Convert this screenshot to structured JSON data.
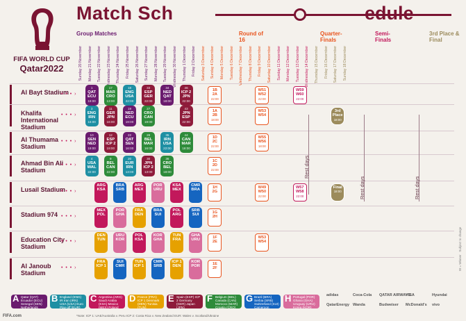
{
  "header": {
    "title": "Match Sch",
    "title_tail": "edule",
    "brand": "FIFA WORLD CUP",
    "brand_sub": "Qatar2022"
  },
  "stages": {
    "group": "Group Matches",
    "r16": "Round of 16",
    "qf": "Quarter-Finals",
    "sf": "Semi-Finals",
    "final": "3rd Place & Final"
  },
  "days": [
    "Sunday 20 November",
    "Monday 21 November",
    "Tuesday 22 November",
    "Wednesday 23 November",
    "Thursday 24 November",
    "Friday 25 November",
    "Saturday 26 November",
    "Sunday 27 November",
    "Monday 28 November",
    "Tuesday 29 November",
    "Wednesday 30 November",
    "Thursday 1 December",
    "Friday 2 December",
    "Saturday 3 December",
    "Sunday 4 December",
    "Monday 5 December",
    "Tuesday 6 December",
    "Wednesday 7 December",
    "Thursday 8 December",
    "Friday 9 December",
    "Saturday 10 December",
    "Sunday 11 December",
    "Monday 12 December",
    "Tuesday 13 December",
    "Wednesday 14 December",
    "Thursday 15 December",
    "Friday 16 December",
    "Saturday 17 December",
    "Sunday 18 December"
  ],
  "stadiums": [
    "Al Bayt Stadium",
    "Khalifa International Stadium",
    "Al Thumama Stadium",
    "Ahmad Bin Ali Stadium",
    "Lusail Stadium",
    "Stadium 974",
    "Education City Stadium",
    "Al Janoub Stadium"
  ],
  "rest_label": "Rest days",
  "matches": [
    {
      "no": "1",
      "a": "QAT",
      "b": "ECU",
      "time": "19:00",
      "color": "#6a1b6e"
    },
    {
      "no": "17",
      "a": "MAR",
      "b": "CRO",
      "time": "13:00",
      "color": "#2e8b3a"
    },
    {
      "no": "18",
      "a": "ENG",
      "b": "USA",
      "time": "22:00",
      "color": "#1e8fa3"
    },
    {
      "no": "33",
      "a": "ESP",
      "b": "GER",
      "time": "22:00",
      "color": "#8e1b3a"
    },
    {
      "no": "34",
      "a": "NED",
      "b": "QAT",
      "time": "18:00",
      "color": "#6a1b6e"
    },
    {
      "no": "46",
      "a": "ICP 2",
      "b": "JPN",
      "time": "22:00",
      "color": "#8e1b3a"
    },
    {
      "no": "3",
      "a": "ENG",
      "b": "IRN",
      "time": "16:00",
      "color": "#1e8fa3"
    },
    {
      "no": "11",
      "a": "GER",
      "b": "JPN",
      "time": "16:00",
      "color": "#8e1b3a"
    },
    {
      "no": "19",
      "a": "NED",
      "b": "ECU",
      "time": "19:00",
      "color": "#6a1b6e"
    },
    {
      "no": "27",
      "a": "CRO",
      "b": "CAN",
      "time": "19:00",
      "color": "#2e8b3a"
    },
    {
      "no": "43",
      "a": "JPN",
      "b": "ESP",
      "time": "22:00",
      "color": "#8e1b3a"
    },
    {
      "no": "10",
      "a": "SEN",
      "b": "NED",
      "time": "19:00",
      "color": "#6a1b6e"
    },
    {
      "no": "12",
      "a": "ESP",
      "b": "ICP 2",
      "time": "19:00",
      "color": "#8e1b3a"
    },
    {
      "no": "22",
      "a": "QAT",
      "b": "SEN",
      "time": "16:00",
      "color": "#6a1b6e"
    },
    {
      "no": "28",
      "a": "BEL",
      "b": "MAR",
      "time": "16:00",
      "color": "#2e8b3a"
    },
    {
      "no": "35",
      "a": "IRN",
      "b": "USA",
      "time": "22:00",
      "color": "#1e8fa3"
    },
    {
      "no": "44",
      "a": "CAN",
      "b": "MAR",
      "time": "18:00",
      "color": "#2e8b3a"
    },
    {
      "no": "4",
      "a": "USA",
      "b": "WAL",
      "time": "22:00",
      "color": "#1e8fa3"
    },
    {
      "no": "9",
      "a": "BEL",
      "b": "CAN",
      "time": "22:00",
      "color": "#2e8b3a"
    },
    {
      "no": "20",
      "a": "EUR",
      "b": "IRN",
      "time": "13:00",
      "color": "#1e8fa3"
    },
    {
      "no": "30",
      "a": "JPN",
      "b": "ICP 2",
      "time": "13:00",
      "color": "#8e1b3a"
    },
    {
      "no": "36",
      "a": "CRO",
      "b": "BEL",
      "time": "18:00",
      "color": "#2e8b3a"
    }
  ],
  "knockouts": [
    {
      "label": "1B",
      "sub": "2A",
      "time": "22:00",
      "color": "#e8541e"
    },
    {
      "label": "1A",
      "sub": "2B",
      "time": "18:00",
      "color": "#e8541e"
    },
    {
      "label": "1D",
      "sub": "2C",
      "time": "22:00",
      "color": "#e8541e"
    },
    {
      "label": "1C",
      "sub": "2D",
      "time": "22:00",
      "color": "#e8541e"
    },
    {
      "label": "W51",
      "sub": "W52",
      "time": "22:00",
      "color": "#e8541e"
    },
    {
      "label": "W55",
      "sub": "W56",
      "time": "18:00",
      "color": "#e8541e"
    },
    {
      "label": "W49",
      "sub": "W50",
      "time": "22:00",
      "color": "#e8541e"
    },
    {
      "label": "W59",
      "sub": "W60",
      "time": "22:00",
      "color": "#c2185b"
    },
    {
      "label": "W57",
      "sub": "W58",
      "time": "22:00",
      "color": "#c2185b"
    },
    {
      "label": "3rd",
      "sub": "Place",
      "time": "18:00",
      "color": "#9c8b5c"
    },
    {
      "label": "Final",
      "sub": "",
      "time": "18:00",
      "color": "#9c8b5c"
    }
  ],
  "legend": [
    {
      "g": "A",
      "text": "Qatar (QAT) Ecuador (ECU) Senegal (SEN) Netherlands (NED)",
      "color": "#6a1b6e"
    },
    {
      "g": "B",
      "text": "England (ENG) IR Iran (IRN) USA (USA) Euro Play-off (EUR)",
      "color": "#1e8fa3"
    },
    {
      "g": "C",
      "text": "Argentina (ARG) Saudi Arabia (KSA) Mexico (MEX) Poland (POL)",
      "color": "#c2185b"
    },
    {
      "g": "D",
      "text": "France (FRA) ICP 1 Denmark (DEN) Tunisia (TUN)",
      "color": "#e6a100"
    },
    {
      "g": "E",
      "text": "Spain (ESP) ICP 2 Germany (GER) Japan (JPN)",
      "color": "#8e1b3a"
    },
    {
      "g": "F",
      "text": "Belgium (BEL) Canada (CAN) Morocco (MAR) Croatia (CRO)",
      "color": "#2e8b3a"
    },
    {
      "g": "G",
      "text": "Brazil (BRA) Serbia (SRB) Switzerland (SUI) Cameroon (CMR)",
      "color": "#1565c0"
    },
    {
      "g": "H",
      "text": "Portugal (POR) Ghana (GHA) Uruguay (URU) Korea (KOR)",
      "color": "#d96c9c"
    }
  ],
  "sponsors": [
    "adidas",
    "Coca-Cola",
    "QATAR AIRWAYS",
    "VISA",
    "Hyundai",
    "QatarEnergy",
    "Wanda",
    "Budweiser",
    "McDonald's",
    "vivo"
  ],
  "notes": "*Note: ICP 1: UAE/Australia v. Peru  ICP 2: Costa Rica v. New Zealand  EUR: Wales v. Scotland/Ukraine"
}
